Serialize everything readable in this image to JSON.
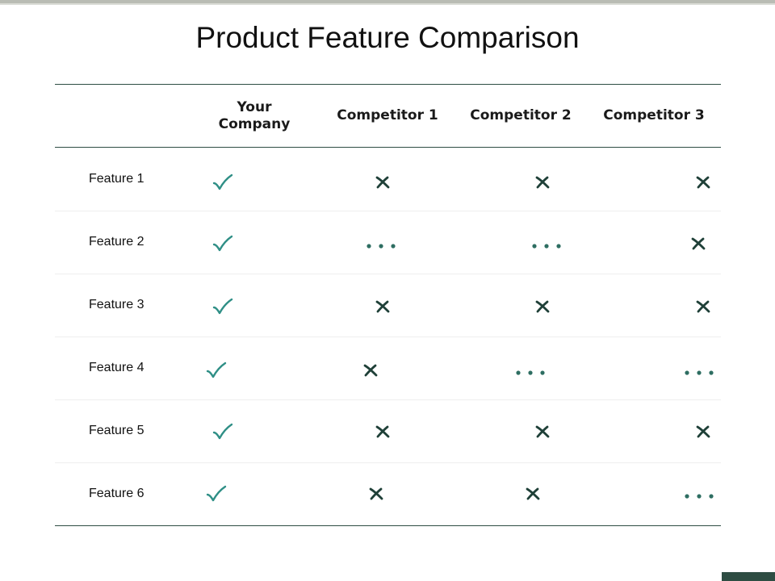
{
  "title": "Product Feature Comparison",
  "columns": [
    "Your Company",
    "Competitor 1",
    "Competitor 2",
    "Competitor 3"
  ],
  "rows": [
    {
      "feature": "Feature 1",
      "marks": [
        "check",
        "cross",
        "cross",
        "cross"
      ]
    },
    {
      "feature": "Feature 2",
      "marks": [
        "check",
        "partial",
        "partial",
        "cross"
      ]
    },
    {
      "feature": "Feature 3",
      "marks": [
        "check",
        "cross",
        "cross",
        "cross"
      ]
    },
    {
      "feature": "Feature 4",
      "marks": [
        "check",
        "cross",
        "partial",
        "partial"
      ]
    },
    {
      "feature": "Feature 5",
      "marks": [
        "check",
        "cross",
        "cross",
        "cross"
      ]
    },
    {
      "feature": "Feature 6",
      "marks": [
        "check",
        "cross",
        "cross",
        "partial"
      ]
    }
  ],
  "colors": {
    "check": "#2f8f86",
    "cross": "#1f4038",
    "partial": "#2e6e62",
    "rule": "#2e4d43"
  }
}
